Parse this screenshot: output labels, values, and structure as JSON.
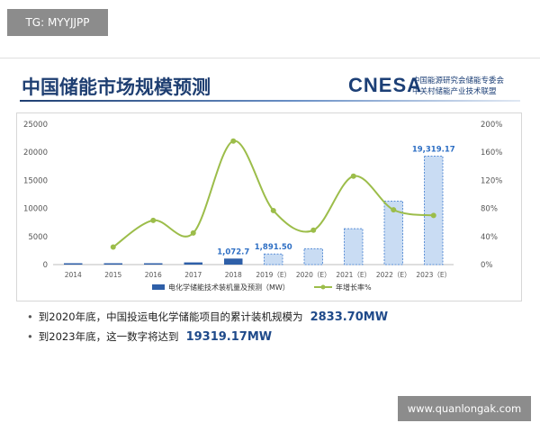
{
  "watermark_tag": "TG: MYYJJPP",
  "watermark_url": "www.quanlongak.com",
  "slide": {
    "title": "中国储能市场规模预测",
    "logo_text": "CNESA",
    "logo_line1": "中关村储能产业技术联盟",
    "logo_line2": "中国能源研究会储能专委会"
  },
  "bullets": [
    {
      "text": "到2020年底，中国投运电化学储能项目的累计装机规模为",
      "highlight": "2833.70MW"
    },
    {
      "text": "到2023年底，这一数字将达到",
      "highlight": "19319.17MW"
    }
  ],
  "colors": {
    "bar_actual": "#2e5fa8",
    "bar_forecast_fill": "#c9dcf3",
    "bar_forecast_stroke": "#5b8fd6",
    "line": "#9cbd4a",
    "label_blue": "#2e6fc4",
    "axis_text": "#555555"
  },
  "chart_data": {
    "type": "bar",
    "categories": [
      "2014",
      "2015",
      "2016",
      "2017",
      "2018",
      "2019（E）",
      "2020（E）",
      "2021（E）",
      "2022（E）",
      "2023（E）"
    ],
    "forecast_from_index": 5,
    "series": [
      {
        "name": "电化学储能技术装机量及预测（MW）",
        "type": "bar",
        "axis": "left",
        "values": [
          100,
          140,
          240,
          390,
          1072.7,
          1891.5,
          2833.7,
          6400,
          11300,
          19319.17
        ]
      },
      {
        "name": "年增长率%",
        "type": "line",
        "axis": "right",
        "values": [
          null,
          25,
          63,
          45,
          176,
          77,
          49,
          126,
          78,
          70
        ]
      }
    ],
    "data_labels": [
      {
        "index": 4,
        "text": "1,072.7"
      },
      {
        "index": 5,
        "text": "1,891.50"
      },
      {
        "index": 9,
        "text": "19,319.17"
      }
    ],
    "y_left": {
      "ticks": [
        0,
        5000,
        10000,
        15000,
        20000,
        25000
      ],
      "ylim": [
        0,
        25000
      ]
    },
    "y_right": {
      "ticks": [
        "0%",
        "40%",
        "80%",
        "120%",
        "160%",
        "200%"
      ],
      "ylim": [
        0,
        200
      ]
    },
    "legend": {
      "position": "bottom"
    },
    "grid": false
  }
}
